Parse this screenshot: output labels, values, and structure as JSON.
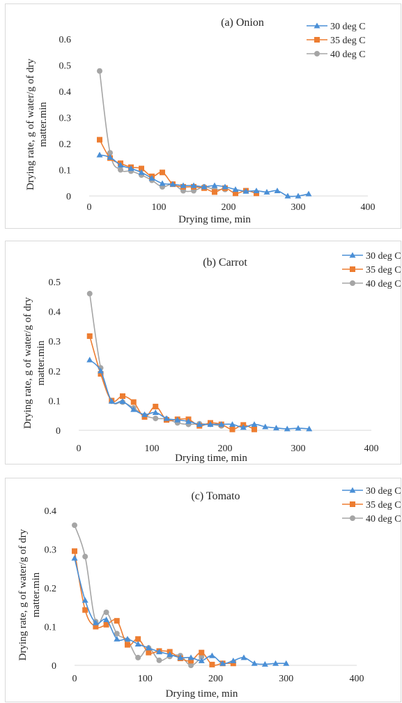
{
  "colors": {
    "series_30": "#4a8fd6",
    "series_35": "#ed7d31",
    "series_40": "#a5a5a5",
    "axis": "#d9d9d9",
    "text": "#262626"
  },
  "chart_data": [
    {
      "type": "line",
      "title": "(a) Onion",
      "xlabel": "Drying time, min",
      "ylabel": "Drying rate, g of water/g of dry matter.min",
      "ylabel_lines": [
        "Drying rate, g of water/g of dry",
        "matter.min"
      ],
      "xlim": [
        0,
        400
      ],
      "ylim": [
        0,
        0.6
      ],
      "xticks": [
        0,
        100,
        200,
        300,
        400
      ],
      "xtick_labels": [
        "0",
        "100",
        "200",
        "300",
        "400"
      ],
      "yticks": [
        0,
        0.1,
        0.2,
        0.3,
        0.4,
        0.5,
        0.6
      ],
      "ytick_labels": [
        "0",
        "0.1",
        "0.2",
        "0.3",
        "0.4",
        "0.5",
        "0.6"
      ],
      "grid": false,
      "legend": "top-right",
      "series": [
        {
          "name": "30 deg C",
          "marker": "triangle",
          "x": [
            15,
            30,
            45,
            60,
            75,
            90,
            105,
            120,
            135,
            150,
            165,
            180,
            195,
            210,
            225,
            240,
            255,
            270,
            285,
            300,
            315
          ],
          "y": [
            0.157,
            0.148,
            0.118,
            0.105,
            0.09,
            0.068,
            0.048,
            0.045,
            0.04,
            0.04,
            0.035,
            0.04,
            0.035,
            0.025,
            0.018,
            0.02,
            0.015,
            0.02,
            0.0,
            0.0,
            0.008
          ]
        },
        {
          "name": "35 deg C",
          "marker": "square",
          "x": [
            15,
            30,
            45,
            60,
            75,
            90,
            105,
            120,
            135,
            150,
            165,
            180,
            195,
            210,
            225,
            240
          ],
          "y": [
            0.215,
            0.145,
            0.125,
            0.11,
            0.105,
            0.075,
            0.09,
            0.045,
            0.035,
            0.035,
            0.03,
            0.015,
            0.03,
            0.01,
            0.02,
            0.01
          ]
        },
        {
          "name": "40 deg C",
          "marker": "circle",
          "x": [
            15,
            30,
            45,
            60,
            75,
            90,
            105,
            120,
            135,
            150,
            165,
            180,
            195
          ],
          "y": [
            0.478,
            0.165,
            0.1,
            0.095,
            0.08,
            0.06,
            0.035,
            0.045,
            0.02,
            0.02,
            0.035,
            0.025,
            0.025
          ]
        }
      ]
    },
    {
      "type": "line",
      "title": "(b) Carrot",
      "xlabel": "Drying time, min",
      "ylabel": "Drying rate, g of water/g of dry matter.min",
      "ylabel_lines": [
        "Drying rate, g of water/g of dry",
        "matter.min"
      ],
      "xlim": [
        0,
        400
      ],
      "ylim": [
        0,
        0.5
      ],
      "xticks": [
        0,
        100,
        200,
        300,
        400
      ],
      "xtick_labels": [
        "0",
        "100",
        "200",
        "300",
        "400"
      ],
      "yticks": [
        0,
        0.1,
        0.2,
        0.3,
        0.4,
        0.5
      ],
      "ytick_labels": [
        "0",
        "0.1",
        "0.2",
        "0.3",
        "0.4",
        "0.5"
      ],
      "grid": false,
      "legend": "top-right",
      "series": [
        {
          "name": "30 deg C",
          "marker": "triangle",
          "x": [
            15,
            30,
            45,
            60,
            75,
            90,
            105,
            120,
            135,
            150,
            165,
            180,
            195,
            210,
            225,
            240,
            255,
            270,
            285,
            300,
            315
          ],
          "y": [
            0.237,
            0.2,
            0.098,
            0.097,
            0.07,
            0.053,
            0.06,
            0.04,
            0.035,
            0.03,
            0.02,
            0.02,
            0.02,
            0.02,
            0.01,
            0.02,
            0.012,
            0.008,
            0.005,
            0.007,
            0.005
          ]
        },
        {
          "name": "35 deg C",
          "marker": "square",
          "x": [
            15,
            30,
            45,
            60,
            75,
            90,
            105,
            120,
            135,
            150,
            165,
            180,
            195,
            210,
            225,
            240
          ],
          "y": [
            0.317,
            0.19,
            0.1,
            0.115,
            0.095,
            0.045,
            0.08,
            0.035,
            0.037,
            0.037,
            0.015,
            0.025,
            0.02,
            0.003,
            0.018,
            0.003
          ]
        },
        {
          "name": "40 deg C",
          "marker": "circle",
          "x": [
            15,
            30,
            45,
            60,
            75,
            90,
            105,
            120,
            135,
            150,
            165,
            180,
            195
          ],
          "y": [
            0.46,
            0.21,
            0.098,
            0.095,
            0.075,
            0.05,
            0.04,
            0.038,
            0.025,
            0.02,
            0.022,
            0.02,
            0.015
          ]
        }
      ]
    },
    {
      "type": "line",
      "title": "(c) Tomato",
      "xlabel": "Drying time, min",
      "ylabel": "Drying rate, g of water/g of dry matter.min",
      "ylabel_lines": [
        "Drying rate, g of water/g of dry",
        "matter.min"
      ],
      "xlim": [
        0,
        400
      ],
      "ylim": [
        0,
        0.4
      ],
      "xticks": [
        0,
        100,
        200,
        300,
        400
      ],
      "xtick_labels": [
        "0",
        "100",
        "200",
        "300",
        "400"
      ],
      "yticks": [
        0,
        0.1,
        0.2,
        0.3,
        0.4
      ],
      "ytick_labels": [
        "0",
        "0.1",
        "0.2",
        "0.3",
        "0.4"
      ],
      "grid": false,
      "legend": "top-right",
      "series": [
        {
          "name": "30 deg C",
          "marker": "triangle",
          "x": [
            0,
            15,
            30,
            45,
            60,
            75,
            90,
            105,
            120,
            135,
            150,
            165,
            180,
            195,
            210,
            225,
            240,
            255,
            270,
            285,
            300
          ],
          "y": [
            0.277,
            0.168,
            0.11,
            0.118,
            0.068,
            0.068,
            0.055,
            0.045,
            0.035,
            0.028,
            0.02,
            0.02,
            0.012,
            0.025,
            0.005,
            0.012,
            0.02,
            0.005,
            0.003,
            0.005,
            0.005
          ]
        },
        {
          "name": "35 deg C",
          "marker": "square",
          "x": [
            0,
            15,
            30,
            45,
            60,
            75,
            90,
            105,
            120,
            135,
            150,
            165,
            180,
            195,
            210,
            225
          ],
          "y": [
            0.295,
            0.143,
            0.1,
            0.105,
            0.115,
            0.053,
            0.068,
            0.033,
            0.037,
            0.035,
            0.018,
            0.012,
            0.033,
            0.002,
            0.005,
            0.005
          ]
        },
        {
          "name": "40 deg C",
          "marker": "circle",
          "x": [
            0,
            15,
            30,
            45,
            60,
            75,
            90,
            105,
            120,
            135,
            150,
            165,
            180
          ],
          "y": [
            0.362,
            0.281,
            0.113,
            0.137,
            0.082,
            0.065,
            0.02,
            0.045,
            0.013,
            0.023,
            0.025,
            0.0,
            0.022
          ]
        }
      ]
    }
  ]
}
